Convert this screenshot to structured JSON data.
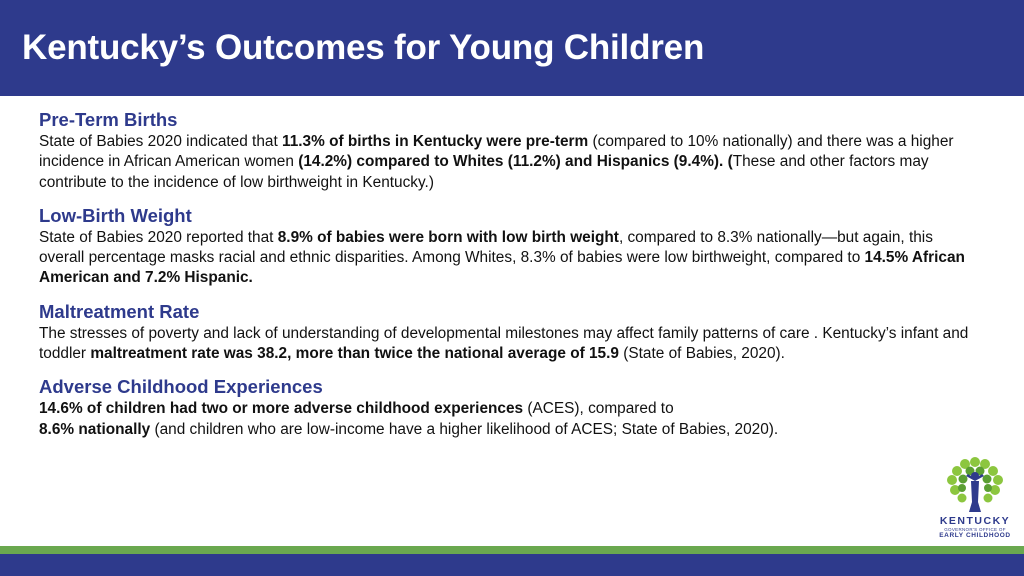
{
  "header": {
    "title": "Kentucky’s Outcomes for Young Children"
  },
  "sections": [
    {
      "heading": "Pre-Term Births",
      "parts": [
        "State of Babies 2020 indicated that ",
        "11.3% of births in Kentucky were pre-term",
        " (compared to 10% nationally) and there was a higher incidence in African American women ",
        "(14.2%) compared to Whites (11.2%) and Hispanics (9.4%). (",
        "These and other factors may contribute to the incidence of low birthweight in Kentucky.)"
      ]
    },
    {
      "heading": "Low-Birth Weight",
      "parts": [
        "State of Babies 2020 reported that ",
        "8.9% of babies were born with low birth weight",
        ", compared to 8.3% nationally—but again, this overall percentage masks racial and ethnic disparities. Among Whites, 8.3% of babies were low birthweight, compared to ",
        "14.5% African American and 7.2% Hispanic."
      ]
    },
    {
      "heading": "Maltreatment Rate",
      "parts": [
        "The stresses of poverty and lack of understanding of developmental milestones may affect family patterns of care . Kentucky’s infant and toddler ",
        "maltreatment rate was 38.2, more than twice the national average of 15.9",
        " (State of Babies, 2020)."
      ]
    },
    {
      "heading": "Adverse Childhood Experiences",
      "parts": [
        "14.6% of children had two or more adverse childhood experiences",
        " (ACES), compared to ",
        "8.6% nationally",
        " (and children who are low-income have a higher likelihood of ACES; State of Babies, 2020)."
      ]
    }
  ],
  "logo": {
    "name": "KENTUCKY",
    "subtitle": "GOVERNOR’S OFFICE OF",
    "line2": "EARLY CHILDHOOD"
  },
  "colors": {
    "header_bg": "#2e3a8c",
    "heading": "#2e3a8c",
    "green_band": "#6aa84f",
    "leaf_light": "#8cc63f",
    "leaf_dark": "#5a9e32"
  }
}
